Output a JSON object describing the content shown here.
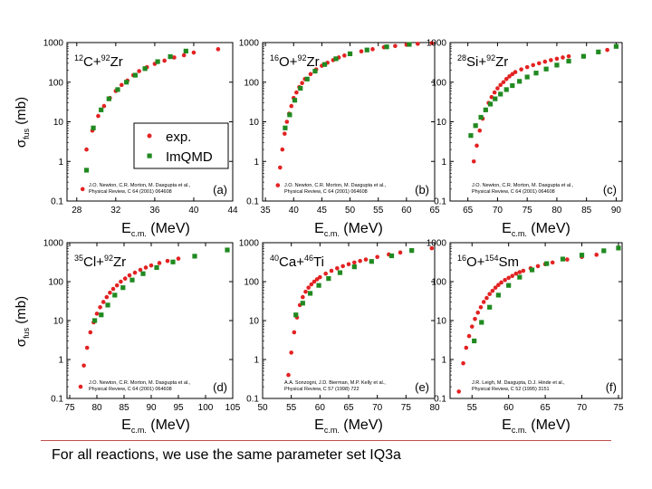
{
  "slide": {
    "caption": "For all reactions, we use the same parameter set IQ3a"
  },
  "common": {
    "ylabel_main": "σ",
    "ylabel_sub": "fus",
    "ylabel_unit": "(mb)",
    "xlabel_main": "E",
    "xlabel_sub": "c.m.",
    "xlabel_unit": "(MeV)",
    "exp_color": "#e32222",
    "qmd_color": "#208a20",
    "legend": [
      "exp.",
      "ImQMD"
    ]
  },
  "chart_data": [
    {
      "type": "scatter",
      "panel": "(a)",
      "title_parts": [
        [
          "sup",
          "12"
        ],
        [
          "n",
          "C+"
        ],
        [
          "sup",
          "92"
        ],
        [
          "n",
          "Zr"
        ]
      ],
      "xlim": [
        27,
        44
      ],
      "xticks": [
        28,
        32,
        36,
        40,
        44
      ],
      "ylim": [
        0.1,
        1000
      ],
      "yscale": "log",
      "yticks": [
        0.1,
        1,
        10,
        100,
        1000
      ],
      "ref": [
        "J.O. Newton, C.R. Morton, M. Dasgupta et al.,",
        "Physical Review, C 64 (2001) 064608"
      ],
      "series": [
        {
          "name": "exp.",
          "x": [
            28.6,
            29.0,
            29.6,
            30.2,
            30.8,
            31.4,
            32.0,
            32.6,
            33.2,
            33.8,
            34.4,
            35.2,
            36.0,
            37.0,
            38.0,
            39.0,
            40.0,
            42.5
          ],
          "y": [
            0.2,
            2.0,
            6.0,
            14,
            25,
            40,
            60,
            85,
            110,
            150,
            190,
            240,
            290,
            350,
            420,
            480,
            560,
            680
          ]
        },
        {
          "name": "ImQMD",
          "x": [
            29.0,
            29.7,
            30.5,
            31.3,
            32.2,
            33.1,
            34.0,
            35.0,
            36.3,
            37.6,
            39.2
          ],
          "y": [
            0.6,
            7,
            20,
            38,
            65,
            100,
            150,
            220,
            330,
            440,
            610
          ]
        }
      ]
    },
    {
      "type": "scatter",
      "panel": "(b)",
      "title_parts": [
        [
          "sup",
          "16"
        ],
        [
          "n",
          "O+"
        ],
        [
          "sup",
          "92"
        ],
        [
          "n",
          "Zr"
        ]
      ],
      "xlim": [
        34.5,
        65
      ],
      "xticks": [
        35,
        40,
        45,
        50,
        55,
        60,
        65
      ],
      "ylim": [
        0.1,
        1000
      ],
      "yscale": "log",
      "yticks": [
        0.1,
        1,
        10,
        100,
        1000
      ],
      "ref": [
        "J.O. Newton, C.R. Morton, M. Dasgupta et al.,",
        "Physical Review, C 64 (2001) 064608"
      ],
      "series": [
        {
          "name": "exp.",
          "x": [
            37.2,
            37.6,
            38.0,
            38.4,
            38.8,
            39.2,
            39.6,
            40.0,
            40.5,
            41.0,
            41.5,
            42.0,
            43.0,
            44.0,
            45.0,
            46.0,
            47.0,
            48.0,
            49.0,
            50.0,
            52.0,
            54.0,
            56.0,
            58.0,
            60.0,
            62.0,
            64.5
          ],
          "y": [
            0.25,
            0.7,
            2,
            5,
            10,
            16,
            25,
            40,
            55,
            75,
            95,
            120,
            160,
            210,
            260,
            310,
            360,
            420,
            470,
            520,
            600,
            680,
            760,
            820,
            880,
            930,
            970
          ]
        },
        {
          "name": "ImQMD",
          "x": [
            38.5,
            39.3,
            40.2,
            41.2,
            42.4,
            43.8,
            45.5,
            47.5,
            50.0,
            53.0,
            56.5,
            60.5
          ],
          "y": [
            7,
            15,
            35,
            70,
            120,
            190,
            280,
            390,
            520,
            650,
            780,
            900
          ]
        }
      ]
    },
    {
      "type": "scatter",
      "panel": "(c)",
      "title_parts": [
        [
          "sup",
          "28"
        ],
        [
          "n",
          "Si+"
        ],
        [
          "sup",
          "92"
        ],
        [
          "n",
          "Zr"
        ]
      ],
      "xlim": [
        62,
        91
      ],
      "xticks": [
        65,
        70,
        75,
        80,
        85,
        90
      ],
      "ylim": [
        0.1,
        1000
      ],
      "yscale": "log",
      "yticks": [
        0.1,
        1,
        10,
        100,
        1000
      ],
      "ref": [
        "J.O. Newton, C.R. Morton, M. Dasgupta et al.,",
        "Physical Review, C 64 (2001) 064608"
      ],
      "series": [
        {
          "name": "exp.",
          "x": [
            66.0,
            66.5,
            67.0,
            67.5,
            68.0,
            68.5,
            69.0,
            69.5,
            70.0,
            70.5,
            71.0,
            71.5,
            72.0,
            72.5,
            73.0,
            74.0,
            75.0,
            76.0,
            77.0,
            78.0,
            79.0,
            80.0,
            81.0,
            82.0,
            88.5
          ],
          "y": [
            1,
            2.5,
            6,
            12,
            20,
            30,
            42,
            55,
            70,
            85,
            100,
            120,
            140,
            160,
            180,
            210,
            240,
            270,
            300,
            330,
            360,
            390,
            420,
            450,
            650
          ]
        },
        {
          "name": "ImQMD",
          "x": [
            65.5,
            66.3,
            67.2,
            68.0,
            68.8,
            69.6,
            70.5,
            71.5,
            72.5,
            73.7,
            75.0,
            76.5,
            78.2,
            80.0,
            82.0,
            84.5,
            87.0,
            90.0
          ],
          "y": [
            4.5,
            8,
            13,
            20,
            28,
            38,
            50,
            65,
            82,
            105,
            135,
            170,
            215,
            270,
            340,
            450,
            580,
            800
          ]
        }
      ]
    },
    {
      "type": "scatter",
      "panel": "(d)",
      "title_parts": [
        [
          "sup",
          "35"
        ],
        [
          "n",
          "Cl+"
        ],
        [
          "sup",
          "92"
        ],
        [
          "n",
          "Zr"
        ]
      ],
      "xlim": [
        74.5,
        105
      ],
      "xticks": [
        75,
        80,
        85,
        90,
        95,
        100,
        105
      ],
      "ylim": [
        0.1,
        1000
      ],
      "yscale": "log",
      "yticks": [
        0.1,
        1,
        10,
        100,
        1000
      ],
      "ref": [
        "J.O. Newton, C.R. Morton, M. Dasgupta et al.,",
        "Physical Review, C 64 (2001) 064608"
      ],
      "series": [
        {
          "name": "exp.",
          "x": [
            77.0,
            77.6,
            78.2,
            78.8,
            79.4,
            80.0,
            80.6,
            81.2,
            81.8,
            82.4,
            83.0,
            83.7,
            84.4,
            85.2,
            86.0,
            87.0,
            88.0,
            89.0,
            90.0,
            91.5,
            93.0,
            95.0
          ],
          "y": [
            0.2,
            0.7,
            2,
            5,
            9,
            15,
            22,
            30,
            40,
            52,
            65,
            80,
            100,
            120,
            145,
            170,
            200,
            230,
            260,
            300,
            340,
            390
          ]
        },
        {
          "name": "ImQMD",
          "x": [
            79.6,
            80.8,
            82.0,
            83.3,
            84.8,
            86.5,
            88.5,
            91.0,
            94.0,
            98.0,
            104.0
          ],
          "y": [
            10,
            14,
            25,
            45,
            70,
            110,
            160,
            230,
            320,
            450,
            650
          ]
        }
      ]
    },
    {
      "type": "scatter",
      "panel": "(e)",
      "title_parts": [
        [
          "sup",
          "40"
        ],
        [
          "n",
          "Ca+"
        ],
        [
          "sup",
          "46"
        ],
        [
          "n",
          "Ti"
        ]
      ],
      "xlim": [
        50,
        80
      ],
      "xticks": [
        50,
        55,
        60,
        65,
        70,
        75,
        80
      ],
      "ylim": [
        0.1,
        1000
      ],
      "yscale": "log",
      "yticks": [
        0.1,
        1,
        10,
        100,
        1000
      ],
      "ref": [
        "A.A. Sonzogni, J.D. Bierman, M.P. Kelly et al.,",
        "Physical Review, C 57 (1998) 722"
      ],
      "series": [
        {
          "name": "exp.",
          "x": [
            54.5,
            55.0,
            55.5,
            56.0,
            56.5,
            57.0,
            57.5,
            58.0,
            58.5,
            59.0,
            59.5,
            60.0,
            61.0,
            62.0,
            63.0,
            64.0,
            65.0,
            66.0,
            67.0,
            68.0,
            70.0,
            72.0,
            74.0,
            76.0,
            79.5
          ],
          "y": [
            0.4,
            1.5,
            5,
            12,
            25,
            40,
            55,
            70,
            85,
            100,
            115,
            130,
            160,
            190,
            220,
            250,
            280,
            310,
            340,
            370,
            430,
            500,
            560,
            620,
            720
          ]
        },
        {
          "name": "ImQMD",
          "x": [
            55.8,
            57.0,
            58.3,
            59.8,
            61.5,
            63.5,
            66.0,
            69.0,
            72.5,
            76.0
          ],
          "y": [
            14,
            28,
            50,
            80,
            120,
            170,
            240,
            330,
            460,
            630
          ]
        }
      ]
    },
    {
      "type": "scatter",
      "panel": "(f)",
      "title_parts": [
        [
          "sup",
          "16"
        ],
        [
          "n",
          "O+"
        ],
        [
          "sup",
          "154"
        ],
        [
          "n",
          "Sm"
        ]
      ],
      "xlim": [
        52,
        75.5
      ],
      "xticks": [
        55,
        60,
        65,
        70,
        75
      ],
      "ylim": [
        0.1,
        1000
      ],
      "yscale": "log",
      "yticks": [
        0.1,
        1,
        10,
        100,
        1000
      ],
      "ref": [
        "J.R. Leigh, M. Dasgupta, D.J. Hinde et al.,",
        "Physical Review, C 52 (1995) 3151"
      ],
      "series": [
        {
          "name": "exp.",
          "x": [
            53.2,
            53.8,
            54.2,
            54.6,
            55.0,
            55.4,
            55.8,
            56.2,
            56.6,
            57.0,
            57.4,
            57.8,
            58.2,
            58.6,
            59.0,
            59.5,
            60.0,
            60.5,
            61.0,
            61.5,
            62.0,
            63.0,
            64.0,
            65.0,
            66.0,
            68.0,
            70.0,
            72.0
          ],
          "y": [
            0.15,
            0.8,
            2,
            4,
            7,
            11,
            16,
            22,
            30,
            38,
            48,
            58,
            70,
            82,
            95,
            110,
            125,
            140,
            160,
            175,
            190,
            220,
            250,
            280,
            310,
            370,
            430,
            490
          ]
        },
        {
          "name": "ImQMD",
          "x": [
            55.3,
            56.3,
            57.4,
            58.6,
            60.0,
            61.5,
            63.2,
            65.2,
            67.4,
            70.0,
            73.0,
            75.0
          ],
          "y": [
            3,
            9,
            22,
            45,
            80,
            130,
            200,
            290,
            380,
            480,
            620,
            730
          ]
        }
      ]
    }
  ]
}
